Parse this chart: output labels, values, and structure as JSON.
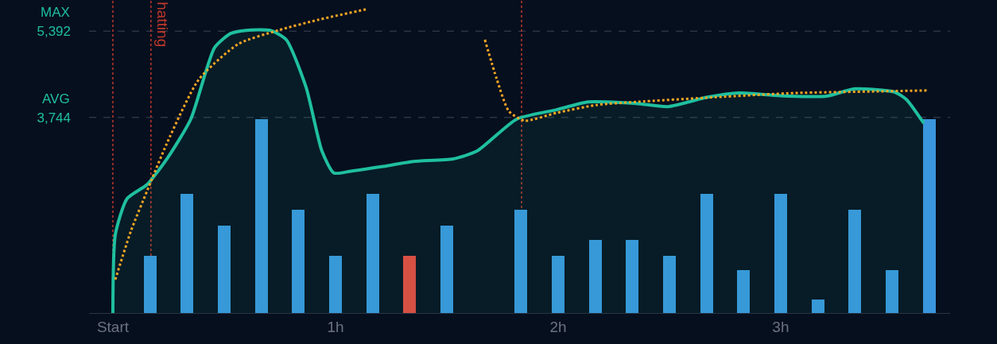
{
  "chart_data": {
    "type": "line",
    "xlim": [
      -0.107,
      3.761
    ],
    "ylim": [
      0,
      5990
    ],
    "xticks": [
      {
        "value": 0,
        "label": "Start"
      },
      {
        "value": 1,
        "label": "1h"
      },
      {
        "value": 2,
        "label": "2h"
      },
      {
        "value": 3,
        "label": "3h"
      }
    ],
    "yticks": [
      {
        "value": 5392,
        "label": "5,392"
      },
      {
        "value": 3744,
        "label": "3,744"
      }
    ],
    "grid": false,
    "series": [
      {
        "type": "bar",
        "color": "#3a96dd",
        "colors": [
          "#3a96dd",
          "#3a96dd",
          "#3a96dd",
          "#3a96dd",
          "#3a96dd",
          "#3a96dd",
          "#3a96dd",
          "#e8473d",
          "#3a96dd",
          "#3a96dd",
          "#3a96dd",
          "#3a96dd",
          "#3a96dd",
          "#3a96dd",
          "#3a96dd",
          "#3a96dd",
          "#3a96dd",
          "#3a96dd",
          "#3a96dd",
          "#3a96dd",
          "#3a96dd",
          "#3a96dd"
        ],
        "x": [
          0.167,
          0.333,
          0.5,
          0.667,
          0.833,
          1.0,
          1.167,
          1.333,
          1.5,
          1.667,
          1.833,
          2.0,
          2.167,
          2.333,
          2.5,
          2.667,
          2.833,
          3.0,
          3.167,
          3.333,
          3.5,
          3.667
        ],
        "values": [
          1090,
          2280,
          1670,
          3710,
          1980,
          1090,
          2280,
          1090,
          1670,
          null,
          1980,
          1090,
          1400,
          1400,
          1090,
          2280,
          820,
          2280,
          260,
          1980,
          820,
          3710
        ]
      },
      {
        "type": "area",
        "color": "#1fbf9f",
        "line_style": "solid",
        "x": [
          0,
          0.011,
          0.064,
          0.154,
          0.243,
          0.35,
          0.457,
          0.529,
          0.6,
          0.707,
          0.779,
          0.868,
          0.939,
          0.993,
          1.064,
          1.207,
          1.35,
          1.529,
          1.636,
          1.814,
          1.993,
          2.136,
          2.35,
          2.493,
          2.671,
          2.814,
          2.993,
          3.207,
          3.332,
          3.511,
          3.564,
          3.643
        ],
        "values": [
          0,
          1500,
          2190,
          2460,
          2950,
          3710,
          5080,
          5350,
          5410,
          5410,
          5230,
          4320,
          3100,
          2680,
          2710,
          2800,
          2900,
          2950,
          3100,
          3710,
          3890,
          4040,
          4010,
          3950,
          4130,
          4210,
          4160,
          4150,
          4290,
          4230,
          4090,
          3630
        ]
      },
      {
        "color": "#f5a623",
        "line_style": "dotted",
        "x": [
          0.011,
          0.082,
          0.154,
          0.243,
          0.386,
          0.564,
          0.743,
          0.921,
          1.136,
          1.243,
          1.4,
          1.618,
          1.671,
          1.725,
          1.779,
          1.85,
          1.993,
          2.171,
          2.35,
          2.707,
          3.064,
          3.421,
          3.664
        ],
        "values": [
          640,
          1580,
          2340,
          3250,
          4470,
          5150,
          5410,
          5610,
          5810,
          null,
          null,
          null,
          5230,
          4470,
          3860,
          3680,
          3830,
          3980,
          4040,
          4130,
          4210,
          4240,
          4260
        ]
      }
    ],
    "ref_lines": [
      {
        "axis": "y",
        "value": 5392,
        "label": "MAX",
        "color": "#2a3444",
        "line_style": "dashed"
      },
      {
        "axis": "y",
        "value": 3744,
        "label": "AVG",
        "color": "#2a3444",
        "line_style": "dashed"
      },
      {
        "axis": "x",
        "value": 0,
        "label": null,
        "color": "#c0392b",
        "line_style": "dotted"
      },
      {
        "axis": "x",
        "value": 0.171,
        "label": "hatting",
        "color": "#c0392b",
        "line_style": "dotted"
      },
      {
        "axis": "x",
        "value": 1.836,
        "label": null,
        "color": "#c0392b",
        "line_style": "dotted"
      }
    ]
  }
}
